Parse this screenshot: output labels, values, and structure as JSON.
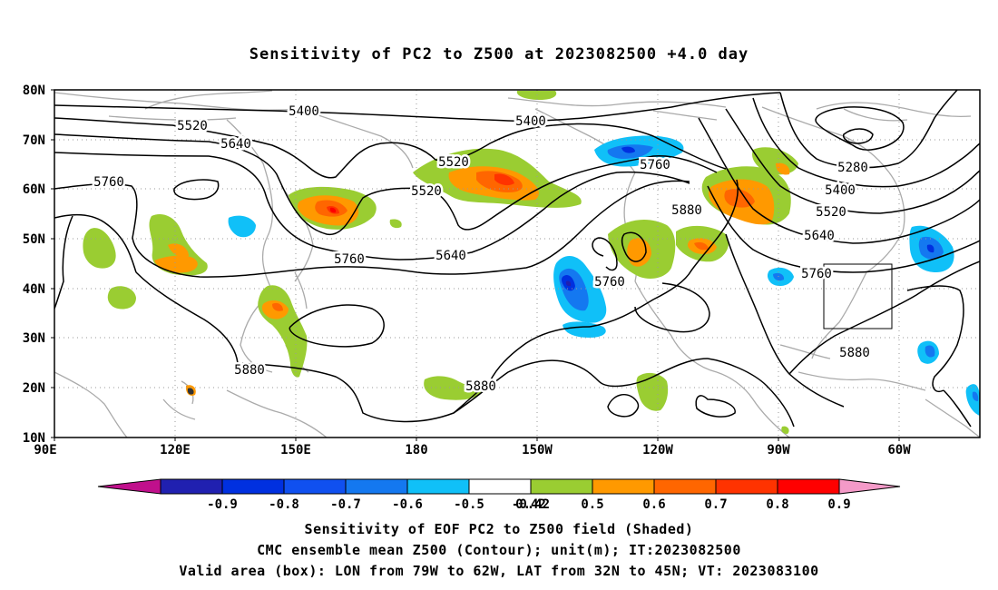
{
  "title": "Sensitivity of PC2 to Z500 at 2023082500 +4.0 day",
  "lat_labels": [
    "80N",
    "70N",
    "60N",
    "50N",
    "40N",
    "30N",
    "20N",
    "10N"
  ],
  "lon_labels": [
    "90E",
    "120E",
    "150E",
    "180",
    "150W",
    "120W",
    "90W",
    "60W"
  ],
  "contour_labels": [
    "5400",
    "5400",
    "5520",
    "5640",
    "5760",
    "5520",
    "5520",
    "5760",
    "5880",
    "5640",
    "5760",
    "5760",
    "5280",
    "5400",
    "5520",
    "5640",
    "5760",
    "5880",
    "5880",
    "5880"
  ],
  "colorbar": {
    "labels": [
      "-0.9",
      "-0.8",
      "-0.7",
      "-0.6",
      "-0.5",
      "-0.42",
      "0.42",
      "0.5",
      "0.6",
      "0.7",
      "0.8",
      "0.9"
    ],
    "colors": [
      "#2020b0",
      "#0030e0",
      "#1050f0",
      "#1478f0",
      "#10c0f8",
      "#ffffff",
      "#9acd32",
      "#ff9900",
      "#ff6600",
      "#ff3300",
      "#ff0000"
    ],
    "low_extension_color": "#c0108c",
    "high_extension_color": "#f49ac8"
  },
  "caption": {
    "line1": "Sensitivity of EOF PC2 to Z500 field (Shaded)",
    "line2": "CMC ensemble mean Z500 (Contour); unit(m); IT:2023082500",
    "line3": "Valid area (box): LON from 79W to 62W, LAT from 32N to 45N; VT: 2023083100"
  }
}
